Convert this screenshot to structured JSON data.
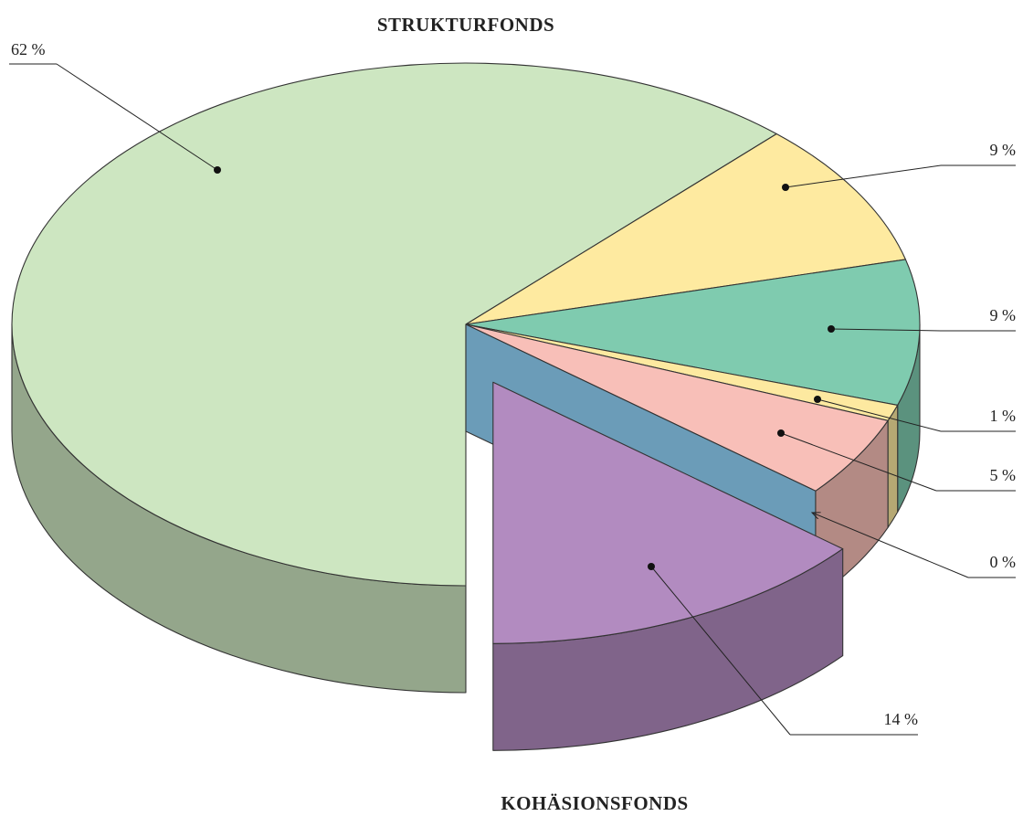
{
  "chart_data": {
    "type": "pie3d",
    "title": "STRUKTURFONDS",
    "annotation": "KOHÄSIONSFONDS",
    "values": [
      62,
      9,
      9,
      1,
      5,
      0,
      14
    ],
    "value_labels": [
      "62 %",
      "9 %",
      "9 %",
      "1 %",
      "5 %",
      "0 %",
      "14 %"
    ],
    "colors": [
      "#cde6c1",
      "#feeaa0",
      "#7fcbaf",
      "#fde9a0",
      "#f8bfb8",
      "#6b9cb8",
      "#b28bc0"
    ],
    "explode": [
      false,
      false,
      false,
      false,
      false,
      false,
      true
    ]
  }
}
